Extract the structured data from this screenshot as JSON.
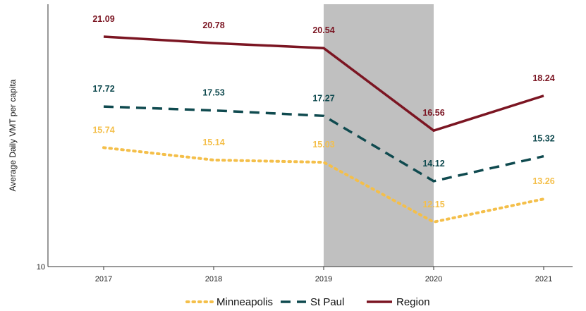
{
  "chart_data": {
    "type": "line",
    "categories": [
      "2017",
      "2018",
      "2019",
      "2020",
      "2021"
    ],
    "ylabel": "Average Daily VMT per capita",
    "xlabel": "",
    "ylim": [
      10,
      22
    ],
    "y_ticks": [
      "10"
    ],
    "highlight": {
      "from": "2019",
      "to": "2020",
      "color": "#c0c0c0"
    },
    "legend_position": "bottom-center",
    "series": [
      {
        "name": "Minneapolis",
        "values": [
          15.74,
          15.14,
          15.03,
          12.15,
          13.26
        ],
        "color": "#f4bf4a",
        "style": "dotted"
      },
      {
        "name": "St Paul",
        "values": [
          17.72,
          17.53,
          17.27,
          14.12,
          15.32
        ],
        "color": "#0f4a4f",
        "style": "dashed"
      },
      {
        "name": "Region",
        "values": [
          21.09,
          20.78,
          20.54,
          16.56,
          18.24
        ],
        "color": "#7b1522",
        "style": "solid"
      }
    ]
  }
}
